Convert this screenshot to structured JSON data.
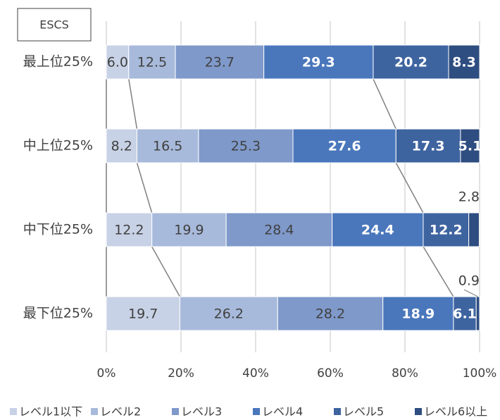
{
  "chart_data": {
    "type": "stacked_bar_horizontal",
    "annotation": "ESCS",
    "categories": [
      "最上位25%",
      "中上位25%",
      "中下位25%",
      "最下位25%"
    ],
    "series": [
      {
        "name": "レベル1以下",
        "color": "#c8d2e6",
        "values": [
          6.0,
          8.2,
          12.2,
          19.7
        ],
        "value_labels": [
          "6.0",
          "8.2",
          "12.2",
          "19.7"
        ]
      },
      {
        "name": "レベル2",
        "color": "#a8badb",
        "values": [
          12.5,
          16.5,
          19.9,
          26.2
        ],
        "value_labels": [
          "12.5",
          "16.5",
          "19.9",
          "26.2"
        ]
      },
      {
        "name": "レベル3",
        "color": "#7f99ca",
        "values": [
          23.7,
          25.3,
          28.4,
          28.2
        ],
        "value_labels": [
          "23.7",
          "25.3",
          "28.4",
          "28.2"
        ]
      },
      {
        "name": "レベル4",
        "color": "#4a77bc",
        "values": [
          29.3,
          27.6,
          24.4,
          18.9
        ],
        "value_labels": [
          "29.3",
          "27.6",
          "24.4",
          "18.9"
        ]
      },
      {
        "name": "レベル5",
        "color": "#3e64a0",
        "values": [
          20.2,
          17.3,
          12.2,
          6.1
        ],
        "value_labels": [
          "20.2",
          "17.3",
          "12.2",
          "6.1"
        ]
      },
      {
        "name": "レベル6以上",
        "color": "#2e4d80",
        "values": [
          8.3,
          5.1,
          2.8,
          0.9
        ],
        "value_labels": [
          "8.3",
          "5.1",
          "2.8",
          "0.9"
        ]
      }
    ],
    "xlim": [
      0,
      100
    ],
    "xticks": [
      {
        "value": 0,
        "label": "0%"
      },
      {
        "value": 20,
        "label": "20%"
      },
      {
        "value": 40,
        "label": "40%"
      },
      {
        "value": 60,
        "label": "60%"
      },
      {
        "value": 80,
        "label": "80%"
      },
      {
        "value": 100,
        "label": "100%"
      }
    ],
    "grid": true,
    "legend": "bottom"
  }
}
